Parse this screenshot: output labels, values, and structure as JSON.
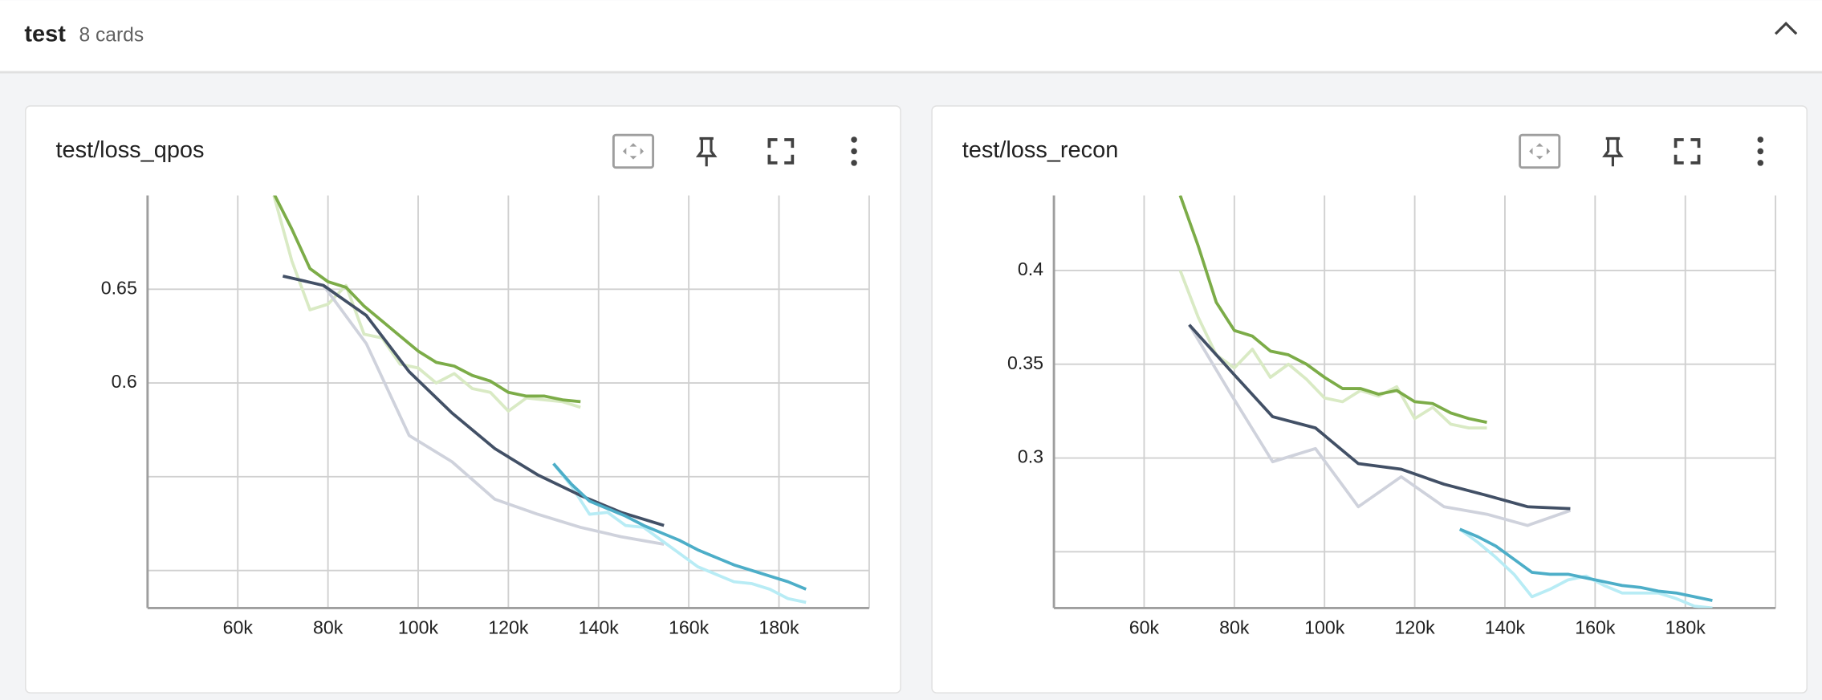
{
  "header": {
    "title": "test",
    "subtitle": "8 cards"
  },
  "chart_data": [
    {
      "type": "line",
      "title": "test/loss_qpos",
      "xlim": [
        40000,
        200000
      ],
      "xticks": [
        {
          "value": 60000,
          "label": "60k"
        },
        {
          "value": 80000,
          "label": "80k"
        },
        {
          "value": 100000,
          "label": "100k"
        },
        {
          "value": 120000,
          "label": "120k"
        },
        {
          "value": 140000,
          "label": "140k"
        },
        {
          "value": 160000,
          "label": "160k"
        },
        {
          "value": 180000,
          "label": "180k"
        }
      ],
      "ylim": [
        0.48,
        0.7
      ],
      "yticks": [
        0.65,
        0.6
      ],
      "y_gridlines": [
        0.55,
        0.5
      ],
      "grid": true,
      "series": [
        {
          "color": "#d9eac4",
          "x": [
            68000,
            72000,
            76000,
            80000,
            84000,
            88000,
            92000,
            96000,
            100000,
            104000,
            108000,
            112000,
            116000,
            120000,
            124000,
            128000,
            132000,
            136000
          ],
          "values": [
            0.7,
            0.665,
            0.639,
            0.642,
            0.652,
            0.626,
            0.624,
            0.61,
            0.608,
            0.6,
            0.605,
            0.597,
            0.595,
            0.585,
            0.592,
            0.591,
            0.59,
            0.587
          ]
        },
        {
          "color": "#cfd2dc",
          "x": [
            70000,
            79000,
            88500,
            98000,
            107500,
            117000,
            126500,
            136000,
            145000,
            154500
          ],
          "values": [
            0.657,
            0.652,
            0.621,
            0.572,
            0.558,
            0.538,
            0.53,
            0.523,
            0.518,
            0.514
          ]
        },
        {
          "color": "#b8ecf5",
          "x": [
            130000,
            134000,
            138000,
            142000,
            146000,
            150000,
            154000,
            158000,
            162000,
            166000,
            170000,
            174000,
            178000,
            182000,
            186000
          ],
          "values": [
            0.557,
            0.545,
            0.53,
            0.531,
            0.524,
            0.523,
            0.516,
            0.509,
            0.502,
            0.498,
            0.494,
            0.493,
            0.49,
            0.485,
            0.483
          ]
        },
        {
          "color": "#7cac48",
          "x": [
            68000,
            72000,
            76000,
            80000,
            84000,
            88000,
            92000,
            96000,
            100000,
            104000,
            108000,
            112000,
            116000,
            120000,
            124000,
            128000,
            132000,
            136000
          ],
          "values": [
            0.701,
            0.682,
            0.661,
            0.654,
            0.651,
            0.641,
            0.633,
            0.625,
            0.617,
            0.611,
            0.609,
            0.604,
            0.601,
            0.595,
            0.593,
            0.593,
            0.591,
            0.59
          ]
        },
        {
          "color": "#425066",
          "x": [
            70000,
            79000,
            88500,
            98000,
            107500,
            117000,
            126500,
            136000,
            145000,
            154500
          ],
          "values": [
            0.657,
            0.652,
            0.636,
            0.606,
            0.584,
            0.565,
            0.551,
            0.54,
            0.531,
            0.524
          ]
        },
        {
          "color": "#4daec8",
          "x": [
            130000,
            134000,
            138000,
            142000,
            146000,
            150000,
            154000,
            158000,
            162000,
            166000,
            170000,
            174000,
            178000,
            182000,
            186000
          ],
          "values": [
            0.557,
            0.546,
            0.537,
            0.533,
            0.529,
            0.524,
            0.52,
            0.516,
            0.511,
            0.507,
            0.503,
            0.5,
            0.497,
            0.494,
            0.49
          ]
        }
      ]
    },
    {
      "type": "line",
      "title": "test/loss_recon",
      "xlim": [
        40000,
        200000
      ],
      "xticks": [
        {
          "value": 60000,
          "label": "60k"
        },
        {
          "value": 80000,
          "label": "80k"
        },
        {
          "value": 100000,
          "label": "100k"
        },
        {
          "value": 120000,
          "label": "120k"
        },
        {
          "value": 140000,
          "label": "140k"
        },
        {
          "value": 160000,
          "label": "160k"
        },
        {
          "value": 180000,
          "label": "180k"
        }
      ],
      "ylim": [
        0.22,
        0.44
      ],
      "yticks": [
        0.4,
        0.35,
        0.3
      ],
      "y_gridlines": [
        0.25
      ],
      "grid": true,
      "series": [
        {
          "color": "#d9eac4",
          "x": [
            68000,
            72000,
            76000,
            80000,
            84000,
            88000,
            92000,
            96000,
            100000,
            104000,
            108000,
            112000,
            116000,
            120000,
            124000,
            128000,
            132000,
            136000
          ],
          "values": [
            0.4,
            0.375,
            0.355,
            0.348,
            0.358,
            0.343,
            0.35,
            0.342,
            0.332,
            0.33,
            0.336,
            0.333,
            0.338,
            0.321,
            0.327,
            0.318,
            0.316,
            0.316
          ]
        },
        {
          "color": "#cfd2dc",
          "x": [
            70000,
            79000,
            88500,
            98000,
            107500,
            117000,
            126500,
            136000,
            145000,
            154500
          ],
          "values": [
            0.371,
            0.335,
            0.298,
            0.305,
            0.274,
            0.29,
            0.274,
            0.27,
            0.264,
            0.272
          ]
        },
        {
          "color": "#b8ecf5",
          "x": [
            130000,
            134000,
            138000,
            142000,
            146000,
            150000,
            154000,
            158000,
            162000,
            166000,
            170000,
            174000,
            178000,
            182000,
            186000
          ],
          "values": [
            0.262,
            0.255,
            0.247,
            0.238,
            0.226,
            0.23,
            0.235,
            0.237,
            0.232,
            0.228,
            0.228,
            0.228,
            0.225,
            0.221,
            0.22
          ]
        },
        {
          "color": "#7cac48",
          "x": [
            68000,
            72000,
            76000,
            80000,
            84000,
            88000,
            92000,
            96000,
            100000,
            104000,
            108000,
            112000,
            116000,
            120000,
            124000,
            128000,
            132000,
            136000
          ],
          "values": [
            0.44,
            0.413,
            0.383,
            0.368,
            0.365,
            0.357,
            0.355,
            0.35,
            0.343,
            0.337,
            0.337,
            0.334,
            0.336,
            0.33,
            0.329,
            0.324,
            0.321,
            0.319
          ]
        },
        {
          "color": "#425066",
          "x": [
            70000,
            79000,
            88500,
            98000,
            107500,
            117000,
            126500,
            136000,
            145000,
            154500
          ],
          "values": [
            0.371,
            0.347,
            0.322,
            0.316,
            0.297,
            0.294,
            0.286,
            0.28,
            0.274,
            0.273
          ]
        },
        {
          "color": "#4daec8",
          "x": [
            130000,
            134000,
            138000,
            142000,
            146000,
            150000,
            154000,
            158000,
            162000,
            166000,
            170000,
            174000,
            178000,
            182000,
            186000
          ],
          "values": [
            0.262,
            0.258,
            0.253,
            0.246,
            0.239,
            0.238,
            0.238,
            0.236,
            0.234,
            0.232,
            0.231,
            0.229,
            0.228,
            0.226,
            0.224
          ]
        }
      ]
    }
  ]
}
